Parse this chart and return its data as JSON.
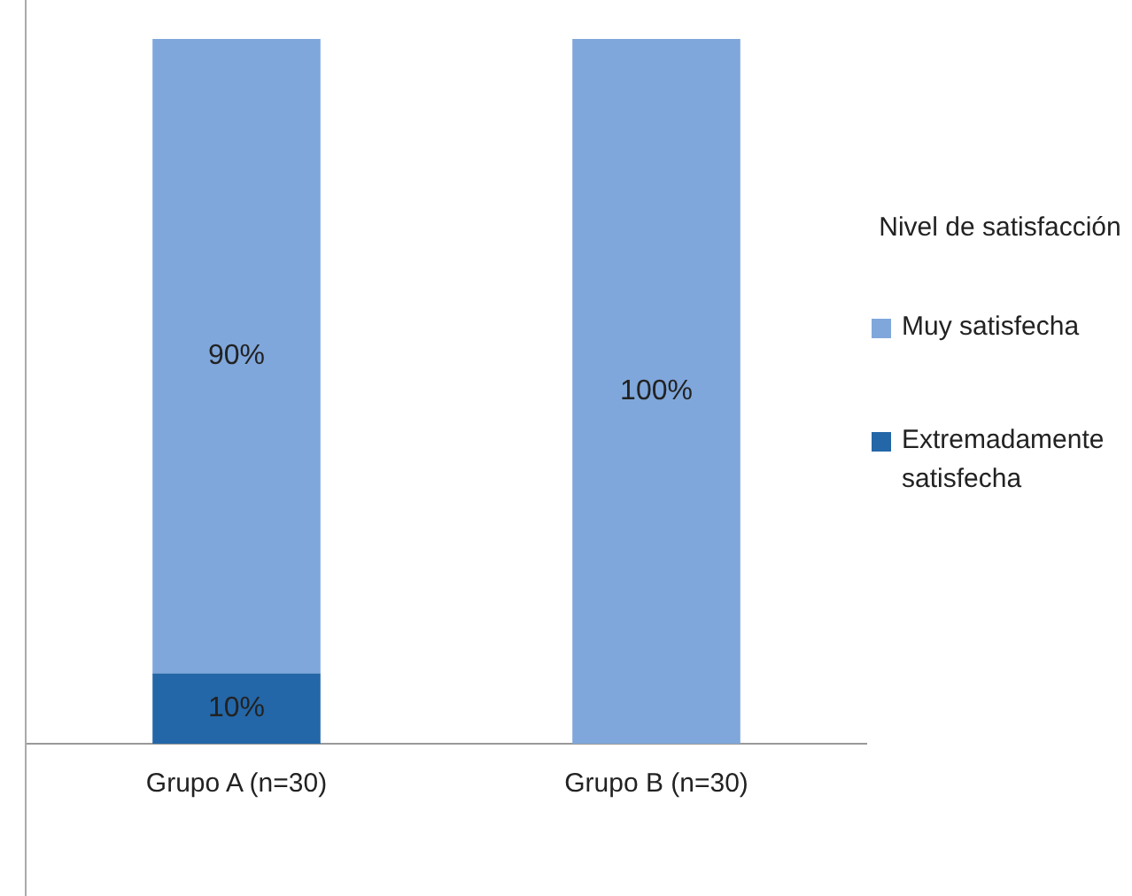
{
  "chart_data": {
    "type": "bar",
    "stacked": true,
    "categories": [
      "Grupo A (n=30)",
      "Grupo B (n=30)"
    ],
    "legend_title": "Nivel de satisfacción",
    "legend": "right",
    "series": [
      {
        "name": "Extremadamente satisfecha",
        "color": "#2467a8",
        "values": [
          10,
          0
        ],
        "value_labels": [
          "10%",
          null
        ]
      },
      {
        "name": "Muy satisfecha",
        "color": "#7fa7db",
        "values": [
          90,
          100
        ],
        "value_labels": [
          "90%",
          "100%"
        ]
      }
    ]
  }
}
